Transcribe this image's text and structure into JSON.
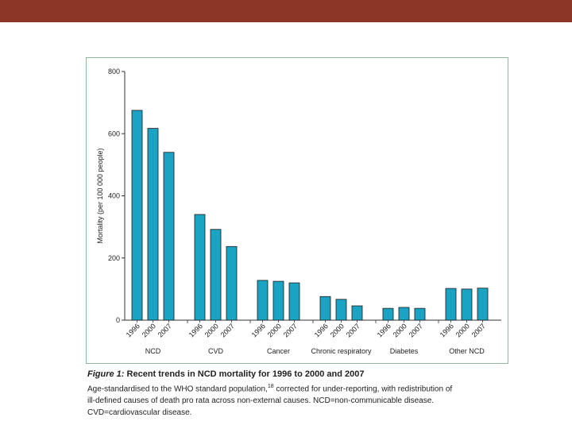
{
  "colors": {
    "top_bar": "#8b3627",
    "bar": "#1ba3c3",
    "bar_stroke": "#1a1a1a",
    "frame": "#8fb99c"
  },
  "chart_data": {
    "type": "bar",
    "title": "Recent trends in NCD mortality for 1996 to 2000 and 2007",
    "ylabel": "Mortality (per 100 000 people)",
    "xlabel": "",
    "ylim": [
      0,
      800
    ],
    "yticks": [
      0,
      200,
      400,
      600,
      800
    ],
    "years": [
      "1996",
      "2000",
      "2007"
    ],
    "groups": [
      {
        "name": "NCD",
        "values": [
          675,
          617,
          540
        ]
      },
      {
        "name": "CVD",
        "values": [
          340,
          292,
          237
        ]
      },
      {
        "name": "Cancer",
        "values": [
          128,
          125,
          120
        ]
      },
      {
        "name": "Chronic respiratory",
        "values": [
          76,
          67,
          46
        ]
      },
      {
        "name": "Diabetes",
        "values": [
          38,
          41,
          38
        ]
      },
      {
        "name": "Other NCD",
        "values": [
          102,
          100,
          103
        ]
      }
    ]
  },
  "caption": {
    "figure_label": "Figure 1:",
    "title": "Recent trends in NCD mortality for 1996 to 2000 and 2007",
    "line1": "Age-standardised to the WHO standard population,",
    "ref": "18",
    "line1_rest": " corrected for under-reporting, with redistribution of",
    "line2": "ill-defined causes of death pro rata across non-external causes. NCD=non-communicable disease.",
    "line3": "CVD=cardiovascular disease."
  }
}
